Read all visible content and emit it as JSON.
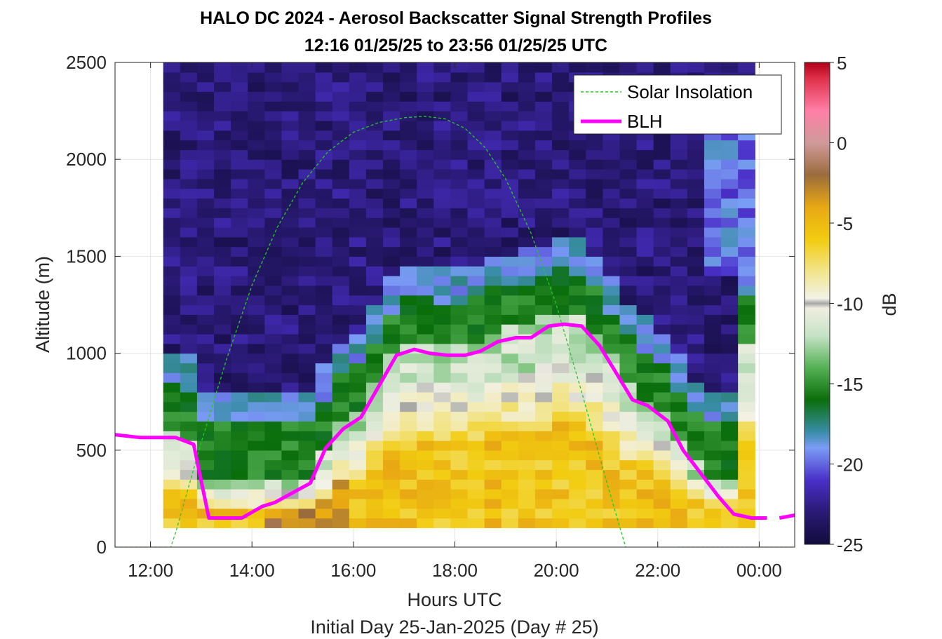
{
  "chart_data": {
    "type": "heatmap",
    "title": "HALO DC 2024 - Aerosol Backscatter Signal Strength Profiles",
    "subtitle": "12:16 01/25/25 to 23:56 01/25/25  UTC",
    "xlabel": "Hours UTC",
    "xlabel2": "Initial Day 25-Jan-2025 (Day # 25)",
    "ylabel": "Altitude (m)",
    "colorbar_label": "dB",
    "x_range_hours": [
      11.3,
      24.7
    ],
    "y_range": [
      0,
      2500
    ],
    "x_ticks": [
      {
        "value": 12,
        "label": "12:00"
      },
      {
        "value": 14,
        "label": "14:00"
      },
      {
        "value": 16,
        "label": "16:00"
      },
      {
        "value": 18,
        "label": "18:00"
      },
      {
        "value": 20,
        "label": "20:00"
      },
      {
        "value": 22,
        "label": "22:00"
      },
      {
        "value": 24,
        "label": "00:00"
      }
    ],
    "y_ticks": [
      {
        "value": 0,
        "label": "0"
      },
      {
        "value": 500,
        "label": "500"
      },
      {
        "value": 1000,
        "label": "1000"
      },
      {
        "value": 1500,
        "label": "1500"
      },
      {
        "value": 2000,
        "label": "2000"
      },
      {
        "value": 2500,
        "label": "2500"
      }
    ],
    "colorbar_range": [
      -25,
      5
    ],
    "colorbar_ticks": [
      {
        "value": 5,
        "label": "5"
      },
      {
        "value": 0,
        "label": "0"
      },
      {
        "value": -5,
        "label": "-5"
      },
      {
        "value": -10,
        "label": "-10"
      },
      {
        "value": -15,
        "label": "-15"
      },
      {
        "value": -20,
        "label": "-20"
      },
      {
        "value": -25,
        "label": "-25"
      }
    ],
    "heatmap": {
      "time_start": 12.25,
      "time_step": 0.3333,
      "num_times": 35,
      "alt_start": 100,
      "alt_step": 50,
      "num_alts": 48
    },
    "grid": true,
    "legend_position": "top-right",
    "series": [
      {
        "name": "Solar Insolation",
        "style": "dashed",
        "color": "#22cc22",
        "x": [
          11.3,
          12.4,
          12.5,
          13.0,
          13.5,
          14.0,
          14.5,
          15.0,
          15.5,
          16.0,
          16.5,
          17.0,
          17.4,
          17.8,
          18.2,
          18.6,
          19.0,
          19.5,
          20.0,
          20.5,
          21.0,
          21.5,
          22.0,
          22.3,
          22.4,
          24.7
        ],
        "y": [
          0,
          0,
          80,
          540,
          970,
          1350,
          1650,
          1880,
          2040,
          2140,
          2190,
          2215,
          2222,
          2210,
          2160,
          2060,
          1900,
          1620,
          1250,
          800,
          330,
          -120,
          -560,
          -820,
          0,
          0
        ]
      },
      {
        "name": "BLH",
        "style": "solid",
        "color": "#ff00ff",
        "x": [
          11.3,
          11.8,
          12.5,
          12.85,
          13.15,
          13.5,
          13.8,
          14.2,
          14.45,
          14.8,
          15.15,
          15.45,
          15.8,
          16.15,
          16.5,
          16.85,
          17.2,
          17.5,
          17.85,
          18.2,
          18.5,
          18.85,
          19.2,
          19.5,
          19.85,
          20.15,
          20.5,
          20.85,
          21.2,
          21.5,
          21.8,
          22.2,
          22.5,
          22.85,
          23.2,
          23.5,
          23.85,
          24.15,
          24.7
        ],
        "y": [
          580,
          565,
          565,
          530,
          150,
          150,
          150,
          210,
          230,
          280,
          330,
          510,
          610,
          670,
          830,
          990,
          1020,
          1000,
          990,
          990,
          1010,
          1060,
          1080,
          1080,
          1140,
          1150,
          1140,
          1040,
          890,
          760,
          730,
          650,
          500,
          380,
          260,
          170,
          150,
          150,
          165
        ],
        "segments": [
          [
            11.3,
            24.15
          ],
          [
            24.4,
            24.7
          ]
        ]
      }
    ]
  }
}
